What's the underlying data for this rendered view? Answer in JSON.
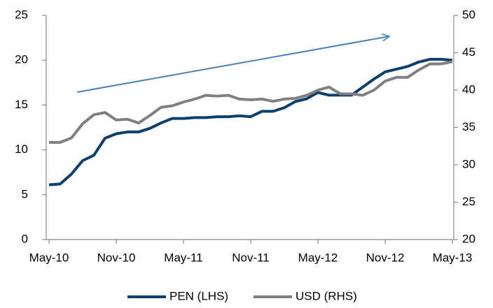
{
  "chart_data": {
    "type": "line",
    "categories": [
      "May-10",
      null,
      null,
      null,
      null,
      null,
      "Nov-10",
      null,
      null,
      null,
      null,
      null,
      "May-11",
      null,
      null,
      null,
      null,
      null,
      "Nov-11",
      null,
      null,
      null,
      null,
      null,
      "May-12",
      null,
      null,
      null,
      null,
      null,
      "Nov-12",
      null,
      null,
      null,
      null,
      null,
      "May-13"
    ],
    "series": [
      {
        "name": "PEN (LHS)",
        "color": "#0d3f6e",
        "axis": "y",
        "values": [
          6.1,
          6.2,
          7.3,
          8.8,
          9.4,
          11.3,
          11.8,
          12.0,
          12.0,
          12.4,
          13.0,
          13.5,
          13.5,
          13.6,
          13.6,
          13.7,
          13.7,
          13.8,
          13.7,
          14.3,
          14.3,
          14.7,
          15.4,
          15.7,
          16.4,
          16.1,
          16.1,
          16.1,
          17.0,
          17.9,
          18.7,
          19.0,
          19.3,
          19.8,
          20.1,
          20.1,
          20.0
        ]
      },
      {
        "name": "USD (RHS)",
        "color": "#808080",
        "axis": "y2",
        "values": [
          33,
          33,
          33.6,
          35.5,
          36.7,
          37,
          36,
          36.1,
          35.6,
          36.6,
          37.7,
          37.9,
          38.4,
          38.8,
          39.3,
          39.2,
          39.3,
          38.8,
          38.7,
          38.8,
          38.5,
          38.8,
          38.9,
          39.3,
          40,
          40.4,
          39.5,
          39.5,
          39.3,
          40,
          41.2,
          41.7,
          41.7,
          42.7,
          43.5,
          43.5,
          43.8
        ]
      }
    ],
    "ylim": [
      0,
      25
    ],
    "yticks": [
      0,
      5,
      10,
      15,
      20,
      25
    ],
    "y2lim": [
      20,
      50
    ],
    "y2ticks": [
      20,
      25,
      30,
      35,
      40,
      45,
      50
    ],
    "grid": false,
    "legend": "bottom"
  }
}
